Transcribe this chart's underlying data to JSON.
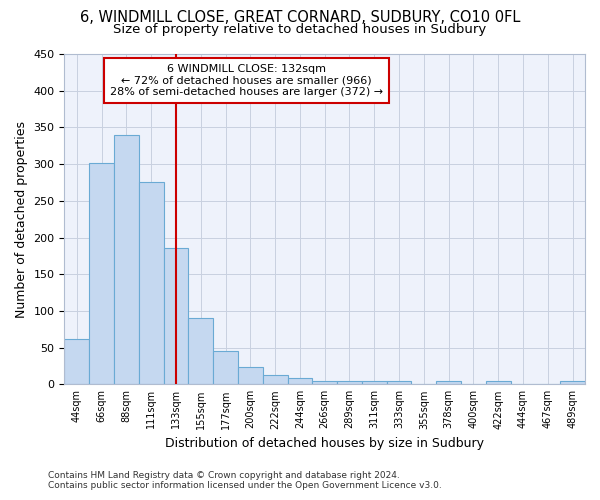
{
  "title1": "6, WINDMILL CLOSE, GREAT CORNARD, SUDBURY, CO10 0FL",
  "title2": "Size of property relative to detached houses in Sudbury",
  "xlabel": "Distribution of detached houses by size in Sudbury",
  "ylabel": "Number of detached properties",
  "bar_heights": [
    62,
    301,
    340,
    275,
    186,
    90,
    46,
    23,
    13,
    8,
    5,
    5,
    4,
    4,
    0,
    4,
    0,
    4,
    0,
    0,
    4
  ],
  "tick_labels": [
    "44sqm",
    "66sqm",
    "88sqm",
    "111sqm",
    "133sqm",
    "155sqm",
    "177sqm",
    "200sqm",
    "222sqm",
    "244sqm",
    "266sqm",
    "289sqm",
    "311sqm",
    "333sqm",
    "355sqm",
    "378sqm",
    "400sqm",
    "422sqm",
    "444sqm",
    "467sqm",
    "489sqm"
  ],
  "bar_color": "#c5d8f0",
  "bar_edge_color": "#6aaad4",
  "vline_x": 4,
  "vline_color": "#cc0000",
  "annotation_line1": "6 WINDMILL CLOSE: 132sqm",
  "annotation_line2": "← 72% of detached houses are smaller (966)",
  "annotation_line3": "28% of semi-detached houses are larger (372) →",
  "annotation_box_color": "#ffffff",
  "annotation_box_edge": "#cc0000",
  "ylim": [
    0,
    450
  ],
  "yticks": [
    0,
    50,
    100,
    150,
    200,
    250,
    300,
    350,
    400,
    450
  ],
  "bg_color": "#eef2fb",
  "grid_color": "#c8d0e0",
  "footer": "Contains HM Land Registry data © Crown copyright and database right 2024.\nContains public sector information licensed under the Open Government Licence v3.0."
}
